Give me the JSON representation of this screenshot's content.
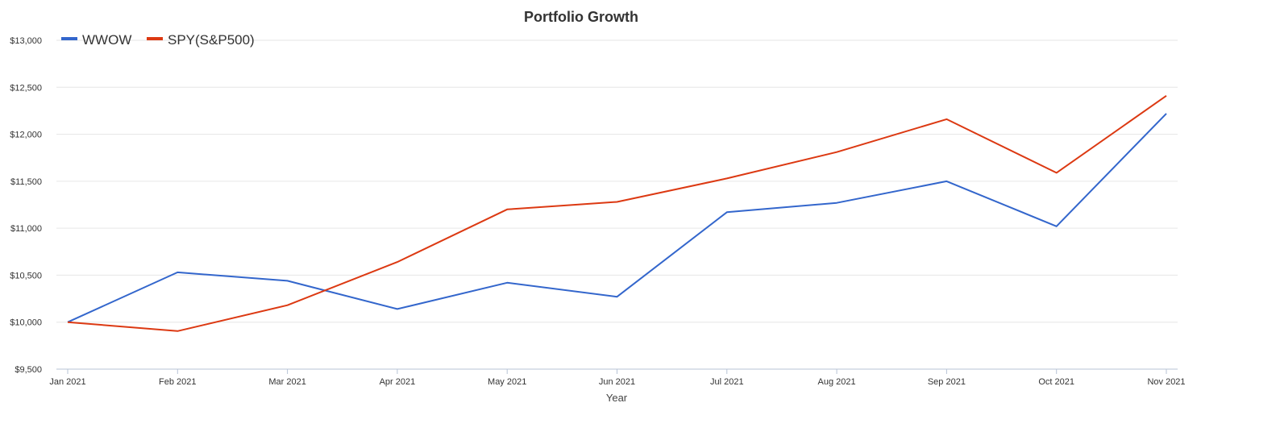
{
  "chart_data": {
    "type": "line",
    "title": "Portfolio Growth",
    "xlabel": "Year",
    "ylabel": "",
    "categories": [
      "Jan 2021",
      "Feb 2021",
      "Mar 2021",
      "Apr 2021",
      "May 2021",
      "Jun 2021",
      "Jul 2021",
      "Aug 2021",
      "Sep 2021",
      "Oct 2021",
      "Nov 2021"
    ],
    "ylim": [
      9500,
      13000
    ],
    "yticks": [
      9500,
      10000,
      10500,
      11000,
      11500,
      12000,
      12500,
      13000
    ],
    "ytick_labels": [
      "$9,500",
      "$10,000",
      "$10,500",
      "$11,000",
      "$11,500",
      "$12,000",
      "$12,500",
      "$13,000"
    ],
    "grid": true,
    "legend_position": "top-left",
    "series": [
      {
        "name": "WWOW",
        "color": "#3366cc",
        "values": [
          10000,
          10530,
          10440,
          10140,
          10420,
          10270,
          11170,
          11270,
          11500,
          11020,
          12220
        ]
      },
      {
        "name": "SPY(S&P500)",
        "color": "#dc3912",
        "values": [
          10000,
          9905,
          10180,
          10640,
          11200,
          11280,
          11530,
          11810,
          12160,
          11590,
          12410
        ]
      }
    ]
  }
}
